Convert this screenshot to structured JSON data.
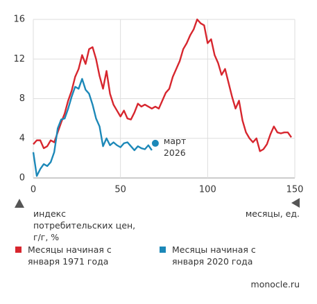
{
  "chart_data": {
    "type": "line",
    "x": [
      0,
      2,
      4,
      6,
      8,
      10,
      12,
      14,
      16,
      18,
      20,
      22,
      24,
      26,
      28,
      30,
      32,
      34,
      36,
      38,
      40,
      42,
      44,
      46,
      48,
      50,
      52,
      54,
      56,
      58,
      60,
      62,
      64,
      66,
      68,
      70,
      72,
      74,
      76,
      78,
      80,
      82,
      84,
      86,
      88,
      90,
      92,
      94,
      96,
      98,
      100,
      102,
      104,
      106,
      108,
      110,
      112,
      114,
      116,
      118,
      120,
      122,
      124,
      126,
      128,
      130,
      132,
      134,
      136,
      138,
      140,
      142,
      144,
      146,
      148
    ],
    "series": [
      {
        "name": "Месяцы начиная с января 1971 года",
        "color": "#d7262e",
        "values": [
          3.4,
          3.8,
          3.8,
          3.0,
          3.2,
          3.8,
          3.6,
          4.6,
          5.6,
          6.5,
          7.8,
          8.8,
          10.2,
          11.0,
          12.4,
          11.5,
          13.0,
          13.2,
          12.0,
          10.3,
          9.0,
          10.8,
          8.5,
          7.4,
          6.8,
          6.2,
          6.8,
          6.0,
          5.9,
          6.6,
          7.5,
          7.2,
          7.4,
          7.2,
          7.0,
          7.2,
          7.0,
          7.8,
          8.6,
          9.0,
          10.2,
          11.0,
          11.8,
          13.0,
          13.6,
          14.4,
          15.0,
          16.0,
          15.6,
          15.4,
          13.6,
          14.0,
          12.4,
          11.6,
          10.4,
          11.0,
          9.6,
          8.2,
          7.0,
          7.8,
          5.8,
          4.6,
          4.0,
          3.6,
          4.0,
          2.7,
          2.9,
          3.4,
          4.4,
          5.2,
          4.6,
          4.5,
          4.6,
          4.6,
          4.1
        ]
      },
      {
        "name": "Месяцы начиная с января 2020 года",
        "color": "#1c88b8",
        "values": [
          2.6,
          0.2,
          0.9,
          1.4,
          1.2,
          1.6,
          2.6,
          5.0,
          5.9,
          6.0,
          7.0,
          8.2,
          9.2,
          9.0,
          10.0,
          8.9,
          8.5,
          7.4,
          6.0,
          5.2,
          3.2,
          4.0,
          3.3,
          3.6,
          3.3,
          3.1,
          3.5,
          3.6,
          3.2,
          2.8,
          3.2,
          3.0,
          2.9,
          3.3,
          2.8,
          null,
          null,
          null,
          null,
          null,
          null,
          null,
          null,
          null,
          null,
          null,
          null,
          null,
          null,
          null,
          null,
          null,
          null,
          null,
          null,
          null,
          null,
          null,
          null,
          null,
          null,
          null,
          null,
          null,
          null,
          null,
          null,
          null,
          null,
          null,
          null,
          null,
          null,
          null,
          null
        ]
      }
    ],
    "annotation": {
      "text": "март 2026",
      "x": 70,
      "y": 3.5
    },
    "xlim": [
      0,
      150
    ],
    "xticks": [
      0,
      50,
      100,
      150
    ],
    "ylim": [
      0,
      16
    ],
    "yticks": [
      0,
      4,
      8,
      12,
      16
    ],
    "grid": true,
    "y_label": "индекс потребительских цен, г/г, %",
    "x_label": "месяцы, ед.",
    "source": "monocle.ru"
  }
}
